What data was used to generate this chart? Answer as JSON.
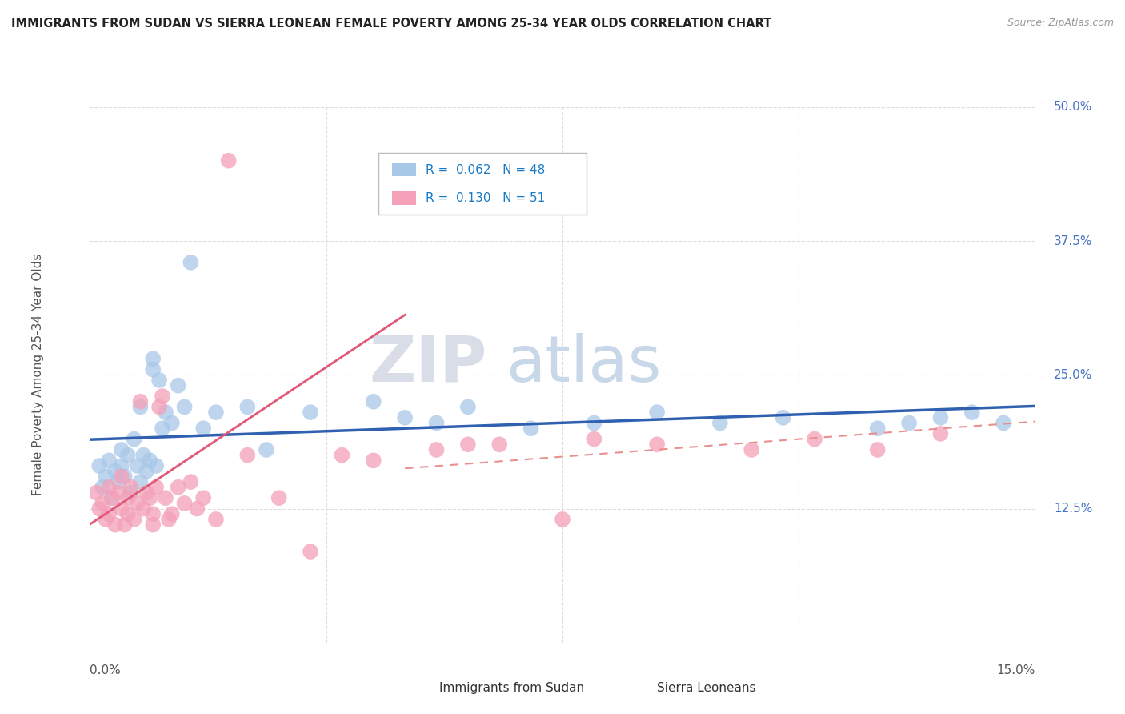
{
  "title": "IMMIGRANTS FROM SUDAN VS SIERRA LEONEAN FEMALE POVERTY AMONG 25-34 YEAR OLDS CORRELATION CHART",
  "source": "Source: ZipAtlas.com",
  "ylabel": "Female Poverty Among 25-34 Year Olds",
  "xlabel_bottom_left": "0.0%",
  "xlabel_bottom_right": "15.0%",
  "x_min": 0.0,
  "x_max": 15.0,
  "y_min": 0.0,
  "y_max": 50.0,
  "y_ticks": [
    0.0,
    12.5,
    25.0,
    37.5,
    50.0
  ],
  "y_tick_labels": [
    "",
    "12.5%",
    "25.0%",
    "37.5%",
    "50.0%"
  ],
  "legend_blue_r": "R = 0.062",
  "legend_blue_n": "N = 48",
  "legend_pink_r": "R = 0.130",
  "legend_pink_n": "N = 51",
  "blue_color": "#a8c8e8",
  "pink_color": "#f4a0b8",
  "blue_line_color": "#3060b0",
  "pink_line_color": "#e05878",
  "pink_dash_color": "#e89090",
  "legend_r_color": "#1a7ac4",
  "legend_n_color": "#cc2222",
  "watermark_zip": "ZIP",
  "watermark_atlas": "atlas",
  "background_color": "#ffffff",
  "blue_scatter_x": [
    0.15,
    0.2,
    0.25,
    0.3,
    0.35,
    0.4,
    0.45,
    0.5,
    0.5,
    0.55,
    0.6,
    0.65,
    0.7,
    0.75,
    0.8,
    0.8,
    0.85,
    0.9,
    0.95,
    1.0,
    1.0,
    1.05,
    1.1,
    1.15,
    1.2,
    1.3,
    1.4,
    1.5,
    1.6,
    1.8,
    2.0,
    2.5,
    2.8,
    3.5,
    4.5,
    5.0,
    5.5,
    6.0,
    7.0,
    8.0,
    9.0,
    10.0,
    11.0,
    12.5,
    13.0,
    13.5,
    14.0,
    14.5
  ],
  "blue_scatter_y": [
    16.5,
    14.5,
    15.5,
    17.0,
    13.5,
    16.0,
    15.0,
    16.5,
    18.0,
    15.5,
    17.5,
    14.0,
    19.0,
    16.5,
    22.0,
    15.0,
    17.5,
    16.0,
    17.0,
    26.5,
    25.5,
    16.5,
    24.5,
    20.0,
    21.5,
    20.5,
    24.0,
    22.0,
    35.5,
    20.0,
    21.5,
    22.0,
    18.0,
    21.5,
    22.5,
    21.0,
    20.5,
    22.0,
    20.0,
    20.5,
    21.5,
    20.5,
    21.0,
    20.0,
    20.5,
    21.0,
    21.5,
    20.5
  ],
  "pink_scatter_x": [
    0.1,
    0.15,
    0.2,
    0.25,
    0.3,
    0.3,
    0.35,
    0.4,
    0.45,
    0.5,
    0.5,
    0.55,
    0.6,
    0.6,
    0.65,
    0.7,
    0.75,
    0.8,
    0.85,
    0.9,
    0.95,
    1.0,
    1.0,
    1.05,
    1.1,
    1.15,
    1.2,
    1.25,
    1.3,
    1.4,
    1.5,
    1.6,
    1.7,
    1.8,
    2.0,
    2.2,
    2.5,
    3.0,
    3.5,
    4.0,
    4.5,
    5.5,
    6.0,
    6.5,
    7.5,
    8.0,
    9.0,
    10.5,
    11.5,
    12.5,
    13.5
  ],
  "pink_scatter_y": [
    14.0,
    12.5,
    13.0,
    11.5,
    12.0,
    14.5,
    13.5,
    11.0,
    14.0,
    12.5,
    15.5,
    11.0,
    13.5,
    12.0,
    14.5,
    11.5,
    13.0,
    22.5,
    12.5,
    14.0,
    13.5,
    12.0,
    11.0,
    14.5,
    22.0,
    23.0,
    13.5,
    11.5,
    12.0,
    14.5,
    13.0,
    15.0,
    12.5,
    13.5,
    11.5,
    45.0,
    17.5,
    13.5,
    8.5,
    17.5,
    17.0,
    18.0,
    18.5,
    18.5,
    11.5,
    19.0,
    18.5,
    18.0,
    19.0,
    18.0,
    19.5
  ]
}
